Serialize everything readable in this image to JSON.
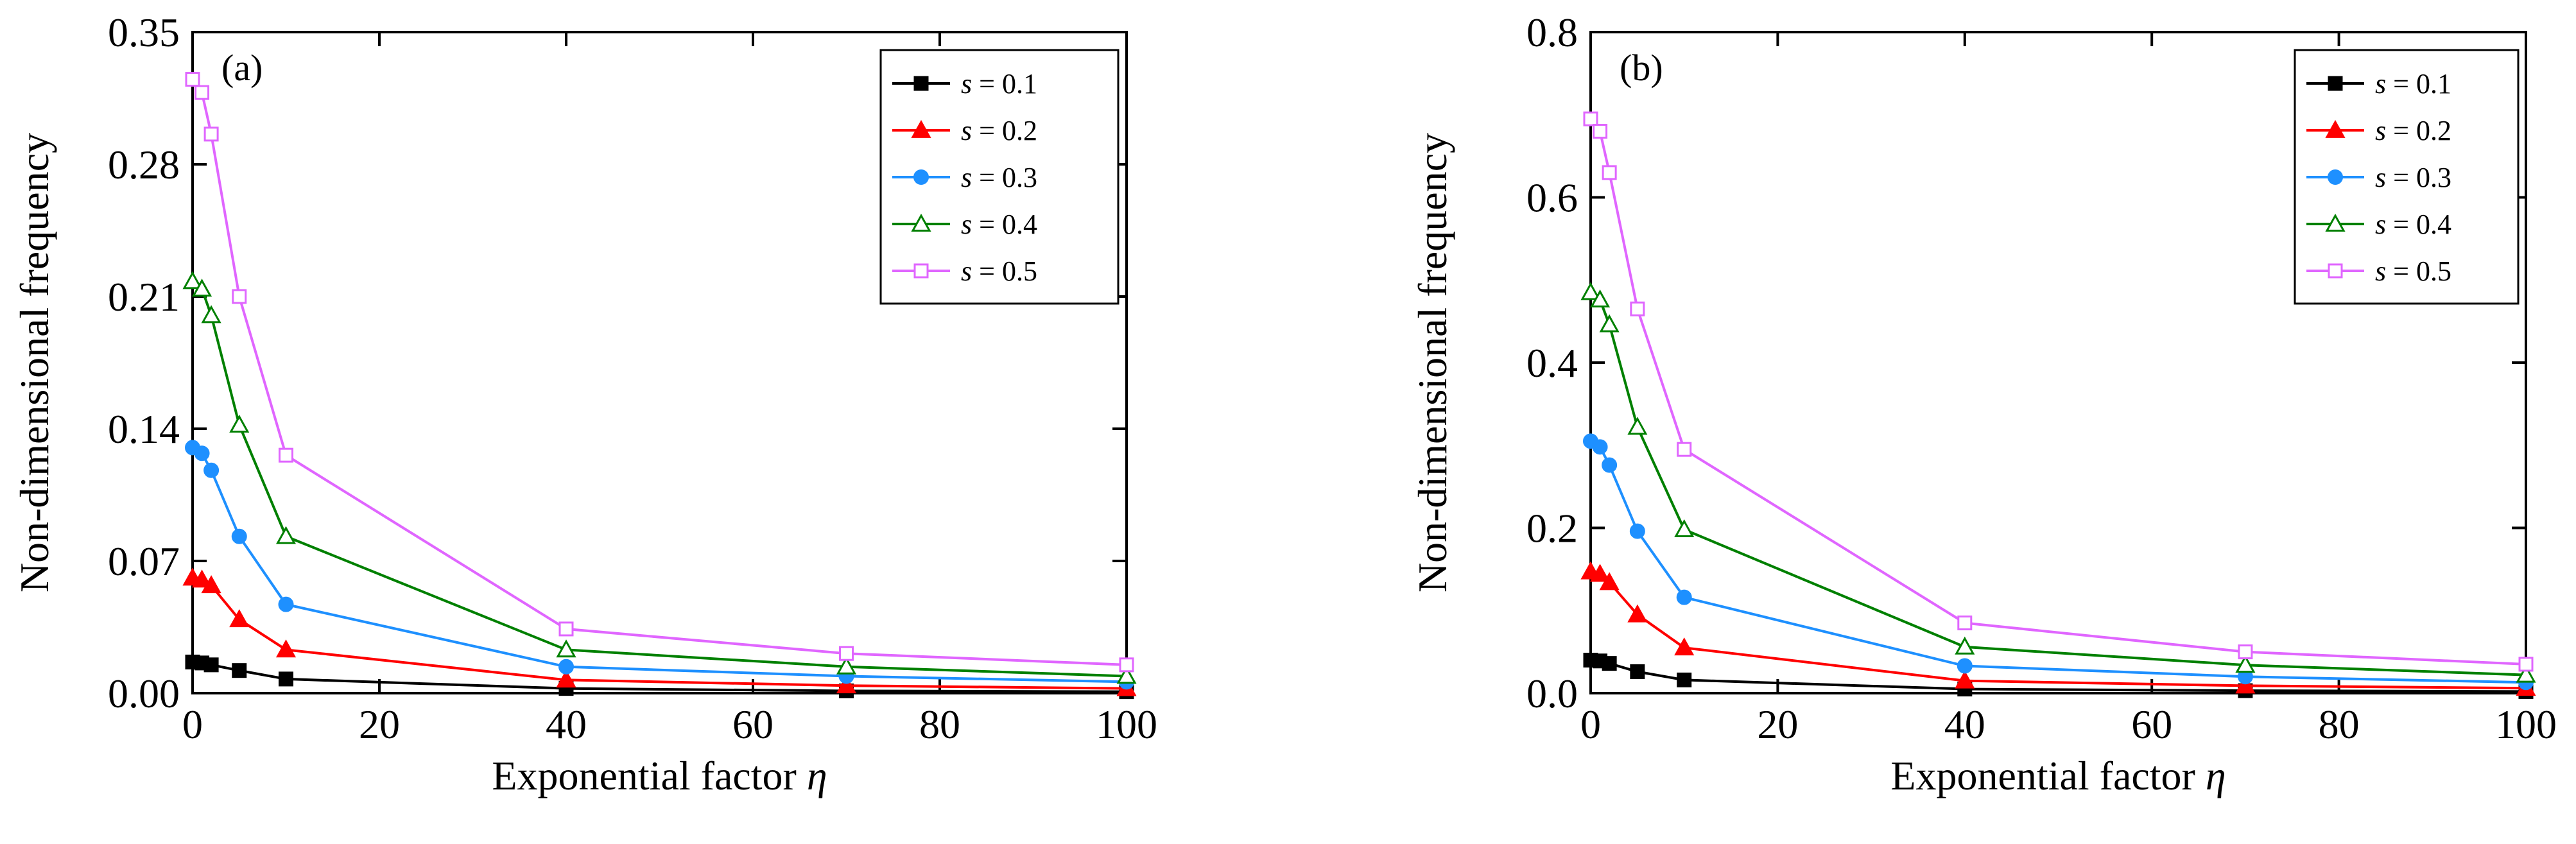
{
  "chart_data": [
    {
      "type": "line",
      "panel_label": "(a)",
      "xlabel": "Exponential factor",
      "xlabel_symbol": "η",
      "ylabel": "Non-dimensional frequency",
      "xlim": [
        0,
        100
      ],
      "ylim": [
        0,
        0.35
      ],
      "xticks": [
        "0",
        "20",
        "40",
        "60",
        "80",
        "100"
      ],
      "yticks": [
        "0.00",
        "0.07",
        "0.14",
        "0.21",
        "0.28",
        "0.35"
      ],
      "legend_position": "top-right",
      "x": [
        0,
        1,
        2,
        5,
        10,
        40,
        70,
        100
      ],
      "series": [
        {
          "name": "s = 0.1",
          "var": "s",
          "eq": " = 0.1",
          "color": "#000000",
          "marker": "square-filled",
          "values": [
            0.0165,
            0.016,
            0.015,
            0.012,
            0.0075,
            0.0025,
            0.0012,
            0.0008
          ]
        },
        {
          "name": "s = 0.2",
          "var": "s",
          "eq": " = 0.2",
          "color": "#ff0000",
          "marker": "triangle-filled",
          "values": [
            0.061,
            0.06,
            0.057,
            0.039,
            0.023,
            0.007,
            0.004,
            0.0025
          ]
        },
        {
          "name": "s = 0.3",
          "var": "s",
          "eq": " = 0.3",
          "color": "#1e90ff",
          "marker": "circle-filled",
          "values": [
            0.13,
            0.127,
            0.118,
            0.083,
            0.047,
            0.014,
            0.009,
            0.006
          ]
        },
        {
          "name": "s = 0.4",
          "var": "s",
          "eq": " = 0.4",
          "color": "#008000",
          "marker": "triangle-open",
          "values": [
            0.218,
            0.214,
            0.2,
            0.142,
            0.083,
            0.023,
            0.014,
            0.009
          ]
        },
        {
          "name": "s = 0.5",
          "var": "s",
          "eq": " = 0.5",
          "color": "#e066ff",
          "marker": "square-open",
          "values": [
            0.325,
            0.318,
            0.296,
            0.21,
            0.126,
            0.034,
            0.021,
            0.015
          ]
        }
      ]
    },
    {
      "type": "line",
      "panel_label": "(b)",
      "xlabel": "Exponential factor",
      "xlabel_symbol": "η",
      "ylabel": "Non-dimensional frequency",
      "xlim": [
        0,
        100
      ],
      "ylim": [
        0,
        0.8
      ],
      "xticks": [
        "0",
        "20",
        "40",
        "60",
        "80",
        "100"
      ],
      "yticks": [
        "0.0",
        "0.2",
        "0.4",
        "0.6",
        "0.8"
      ],
      "legend_position": "top-right",
      "x": [
        0,
        1,
        2,
        5,
        10,
        40,
        70,
        100
      ],
      "series": [
        {
          "name": "s = 0.1",
          "var": "s",
          "eq": " = 0.1",
          "color": "#000000",
          "marker": "square-filled",
          "values": [
            0.04,
            0.039,
            0.036,
            0.026,
            0.016,
            0.005,
            0.003,
            0.002
          ]
        },
        {
          "name": "s = 0.2",
          "var": "s",
          "eq": " = 0.2",
          "color": "#ff0000",
          "marker": "triangle-filled",
          "values": [
            0.147,
            0.144,
            0.134,
            0.095,
            0.055,
            0.015,
            0.009,
            0.006
          ]
        },
        {
          "name": "s = 0.3",
          "var": "s",
          "eq": " = 0.3",
          "color": "#1e90ff",
          "marker": "circle-filled",
          "values": [
            0.305,
            0.298,
            0.276,
            0.196,
            0.116,
            0.033,
            0.02,
            0.013
          ]
        },
        {
          "name": "s = 0.4",
          "var": "s",
          "eq": " = 0.4",
          "color": "#008000",
          "marker": "triangle-open",
          "values": [
            0.485,
            0.476,
            0.446,
            0.322,
            0.198,
            0.056,
            0.034,
            0.022
          ]
        },
        {
          "name": "s = 0.5",
          "var": "s",
          "eq": " = 0.5",
          "color": "#e066ff",
          "marker": "square-open",
          "values": [
            0.695,
            0.68,
            0.63,
            0.465,
            0.295,
            0.085,
            0.05,
            0.035
          ]
        }
      ]
    }
  ]
}
